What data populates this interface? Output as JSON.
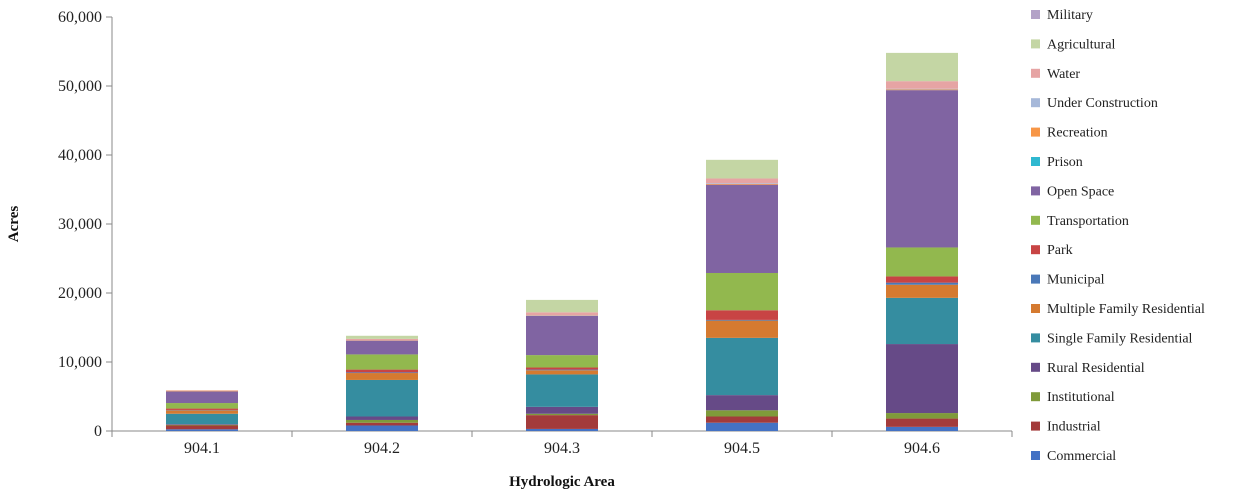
{
  "chart_data": {
    "type": "bar",
    "stacked": true,
    "xlabel": "Hydrologic Area",
    "ylabel": "Acres",
    "ylim": [
      0,
      60000
    ],
    "yticks": [
      0,
      10000,
      20000,
      30000,
      40000,
      50000,
      60000
    ],
    "ytick_labels": [
      "0",
      "10,000",
      "20,000",
      "30,000",
      "40,000",
      "50,000",
      "60,000"
    ],
    "categories": [
      "904.1",
      "904.2",
      "904.3",
      "904.5",
      "904.6"
    ],
    "legend_position": "right",
    "grid": false,
    "series": [
      {
        "name": "Commercial",
        "color": "#4472c4",
        "values": [
          250,
          800,
          300,
          1200,
          600
        ]
      },
      {
        "name": "Industrial",
        "color": "#a33b3b",
        "values": [
          550,
          400,
          2000,
          900,
          1200
        ]
      },
      {
        "name": "Institutional",
        "color": "#7f9a3a",
        "values": [
          100,
          400,
          200,
          900,
          800
        ]
      },
      {
        "name": "Rural Residential",
        "color": "#664a87",
        "values": [
          100,
          500,
          1000,
          2200,
          10000
        ]
      },
      {
        "name": "Single Family Residential",
        "color": "#358da0",
        "values": [
          1500,
          5300,
          4700,
          8300,
          6700
        ]
      },
      {
        "name": "Multiple Family Residential",
        "color": "#d57a30",
        "values": [
          500,
          1000,
          600,
          2500,
          1900
        ]
      },
      {
        "name": "Municipal",
        "color": "#4a78b8",
        "values": [
          50,
          100,
          100,
          100,
          300
        ]
      },
      {
        "name": "Park",
        "color": "#c84444",
        "values": [
          200,
          400,
          300,
          1400,
          900
        ]
      },
      {
        "name": "Transportation",
        "color": "#92b84e",
        "values": [
          800,
          2200,
          1800,
          5400,
          4200
        ]
      },
      {
        "name": "Open Space",
        "color": "#8064a2",
        "values": [
          1700,
          2000,
          5700,
          12800,
          22800
        ]
      },
      {
        "name": "Prison",
        "color": "#2fb8d0",
        "values": [
          0,
          0,
          0,
          0,
          0
        ]
      },
      {
        "name": "Recreation",
        "color": "#f79646",
        "values": [
          100,
          50,
          50,
          100,
          100
        ]
      },
      {
        "name": "Under Construction",
        "color": "#a6b8d9",
        "values": [
          0,
          0,
          50,
          100,
          100
        ]
      },
      {
        "name": "Water",
        "color": "#e6a4a4",
        "values": [
          50,
          200,
          400,
          700,
          1100
        ]
      },
      {
        "name": "Agricultural",
        "color": "#c4d6a4",
        "values": [
          0,
          450,
          1800,
          2700,
          4100
        ]
      },
      {
        "name": "Military",
        "color": "#b3a2c7",
        "values": [
          0,
          0,
          0,
          0,
          0
        ]
      }
    ]
  }
}
